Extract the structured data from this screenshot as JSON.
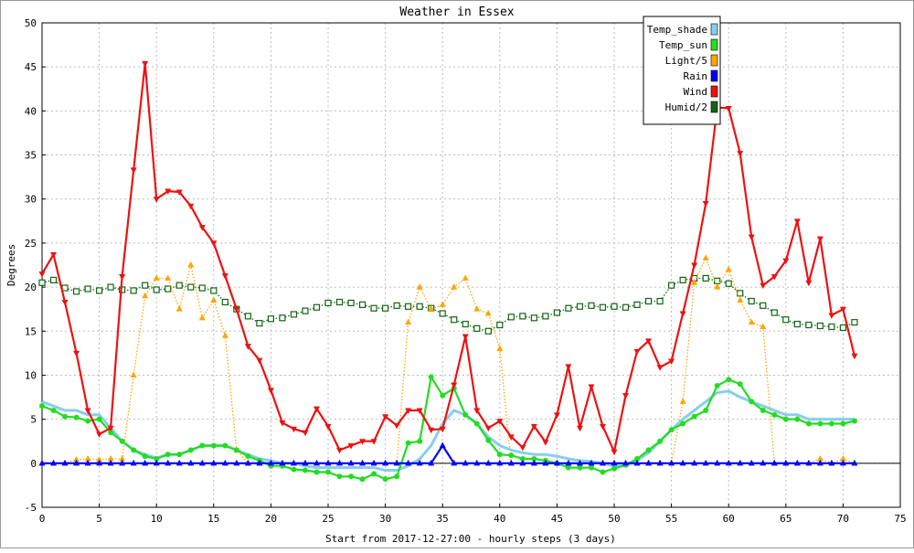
{
  "chart_data": {
    "type": "line",
    "title": "Weather in Essex",
    "xlabel": "Start from 2017-12-27:00 - hourly steps (3 days)",
    "ylabel": "Degrees",
    "xlim": [
      0,
      75
    ],
    "ylim": [
      -5,
      50
    ],
    "x_ticks": [
      0,
      5,
      10,
      15,
      20,
      25,
      30,
      35,
      40,
      45,
      50,
      55,
      60,
      65,
      70,
      75
    ],
    "y_ticks": [
      -5,
      0,
      5,
      10,
      15,
      20,
      25,
      30,
      35,
      40,
      45,
      50
    ],
    "grid": true,
    "legend_position": "top-right",
    "x": [
      0,
      1,
      2,
      3,
      4,
      5,
      6,
      7,
      8,
      9,
      10,
      11,
      12,
      13,
      14,
      15,
      16,
      17,
      18,
      19,
      20,
      21,
      22,
      23,
      24,
      25,
      26,
      27,
      28,
      29,
      30,
      31,
      32,
      33,
      34,
      35,
      36,
      37,
      38,
      39,
      40,
      41,
      42,
      43,
      44,
      45,
      46,
      47,
      48,
      49,
      50,
      51,
      52,
      53,
      54,
      55,
      56,
      57,
      58,
      59,
      60,
      61,
      62,
      63,
      64,
      65,
      66,
      67,
      68,
      69,
      70,
      71
    ],
    "series": [
      {
        "name": "Temp_shade",
        "color": "#87ceeb",
        "marker": "none",
        "line": "solid",
        "values": [
          7.0,
          6.5,
          6.0,
          6.0,
          5.5,
          5.5,
          4.0,
          2.5,
          1.5,
          1.0,
          0.6,
          1.0,
          1.0,
          1.5,
          2.0,
          2.0,
          2.0,
          1.5,
          1.0,
          0.5,
          0.3,
          0.0,
          0.0,
          -0.3,
          -0.5,
          -0.5,
          -0.5,
          -0.5,
          -0.5,
          -0.5,
          -0.8,
          -0.8,
          -0.3,
          0.5,
          2.0,
          4.5,
          6.0,
          5.5,
          4.5,
          3.0,
          2.0,
          1.5,
          1.2,
          1.0,
          1.0,
          0.8,
          0.5,
          0.3,
          0.2,
          0.0,
          -0.3,
          -0.3,
          0.3,
          1.2,
          2.5,
          3.8,
          5.0,
          6.0,
          7.0,
          8.0,
          8.2,
          7.5,
          7.0,
          6.5,
          6.0,
          5.5,
          5.5,
          5.0,
          5.0,
          5.0,
          5.0,
          5.0
        ]
      },
      {
        "name": "Temp_sun",
        "color": "#22dd22",
        "marker": "circle",
        "line": "solid",
        "values": [
          6.5,
          6.0,
          5.3,
          5.2,
          4.8,
          5.0,
          3.5,
          2.5,
          1.5,
          0.8,
          0.5,
          1.0,
          1.0,
          1.5,
          2.0,
          2.0,
          2.0,
          1.5,
          0.8,
          0.3,
          -0.3,
          -0.3,
          -0.7,
          -0.8,
          -1.0,
          -1.0,
          -1.5,
          -1.5,
          -1.8,
          -1.2,
          -1.8,
          -1.5,
          2.3,
          2.5,
          9.8,
          7.7,
          8.5,
          5.5,
          4.5,
          2.6,
          1.0,
          0.9,
          0.5,
          0.5,
          0.3,
          0.0,
          -0.5,
          -0.5,
          -0.5,
          -1.0,
          -0.6,
          -0.2,
          0.5,
          1.5,
          2.5,
          3.8,
          4.5,
          5.3,
          6.0,
          8.8,
          9.5,
          9.0,
          7.0,
          6.0,
          5.5,
          5.0,
          5.0,
          4.5,
          4.5,
          4.5,
          4.5,
          4.8
        ]
      },
      {
        "name": "Light/5",
        "color": "#ffa500",
        "marker": "triangle",
        "line": "dotted",
        "values": [
          0,
          0,
          0,
          0.4,
          0.5,
          0.4,
          0.5,
          0.5,
          10,
          19,
          21,
          21,
          17.5,
          22.5,
          16.5,
          18.5,
          14.5,
          1.5,
          0,
          0,
          0,
          0,
          0,
          0,
          0,
          0,
          0,
          0,
          0,
          0,
          0,
          0,
          16,
          20,
          17.5,
          18,
          20,
          21,
          17.5,
          17,
          13,
          0,
          0,
          0,
          0,
          0,
          0,
          0,
          0,
          0,
          0,
          0,
          0,
          0,
          0,
          0,
          7,
          20.5,
          23.3,
          20,
          22,
          18.5,
          16,
          15.5,
          0,
          0,
          0,
          0,
          0.5,
          0,
          0.5,
          0
        ]
      },
      {
        "name": "Rain",
        "color": "#0000ff",
        "marker": "triangle",
        "line": "solid",
        "values": [
          0,
          0,
          0,
          0,
          0,
          0,
          0,
          0,
          0,
          0,
          0,
          0,
          0,
          0,
          0,
          0,
          0,
          0,
          0,
          0,
          0,
          0,
          0,
          0,
          0,
          0,
          0,
          0,
          0,
          0,
          0,
          0,
          0,
          0,
          0,
          2,
          0,
          0,
          0,
          0,
          0,
          0,
          0,
          0,
          0,
          0,
          0,
          0,
          0,
          0,
          0,
          0,
          0,
          0,
          0,
          0,
          0,
          0,
          0,
          0,
          0,
          0,
          0,
          0,
          0,
          0,
          0,
          0,
          0,
          0,
          0,
          0
        ]
      },
      {
        "name": "Wind",
        "color": "#ee1111",
        "marker": "triangle-down",
        "line": "solid",
        "values": [
          21.5,
          23.7,
          18.3,
          12.5,
          6.0,
          3.3,
          4.0,
          21.2,
          33.3,
          45.4,
          30.0,
          30.9,
          30.8,
          29.2,
          26.8,
          25.0,
          21.3,
          17.5,
          13.3,
          11.7,
          8.3,
          4.6,
          3.9,
          3.5,
          6.2,
          4.2,
          1.5,
          2.0,
          2.5,
          2.5,
          5.3,
          4.3,
          6.0,
          6.0,
          3.8,
          3.9,
          8.9,
          14.4,
          6.0,
          4.0,
          4.8,
          3.0,
          1.8,
          4.2,
          2.4,
          5.5,
          11.0,
          4.0,
          8.7,
          4.2,
          1.3,
          7.7,
          12.7,
          13.9,
          10.9,
          11.6,
          17.0,
          22.5,
          29.5,
          40.4,
          40.3,
          35.2,
          25.7,
          20.2,
          21.2,
          23.0,
          27.5,
          20.5,
          25.5,
          16.8,
          17.5,
          12.2
        ]
      },
      {
        "name": "Humid/2",
        "color": "#116611",
        "marker": "square",
        "line": "dotted",
        "values": [
          20.5,
          20.8,
          19.9,
          19.5,
          19.8,
          19.6,
          20.0,
          19.7,
          19.6,
          20.2,
          19.7,
          19.8,
          20.2,
          20.0,
          19.9,
          19.6,
          18.3,
          17.5,
          16.7,
          15.9,
          16.4,
          16.5,
          16.9,
          17.3,
          17.7,
          18.2,
          18.3,
          18.2,
          18.0,
          17.6,
          17.6,
          17.9,
          17.8,
          17.8,
          17.6,
          17.0,
          16.3,
          15.8,
          15.3,
          15.0,
          15.7,
          16.6,
          16.7,
          16.5,
          16.7,
          17.1,
          17.6,
          17.8,
          17.9,
          17.7,
          17.8,
          17.7,
          18.0,
          18.4,
          18.4,
          20.2,
          20.8,
          21.0,
          21.0,
          20.7,
          20.4,
          19.3,
          18.4,
          17.9,
          17.1,
          16.3,
          15.8,
          15.7,
          15.6,
          15.5,
          15.4,
          16.0
        ]
      }
    ]
  }
}
